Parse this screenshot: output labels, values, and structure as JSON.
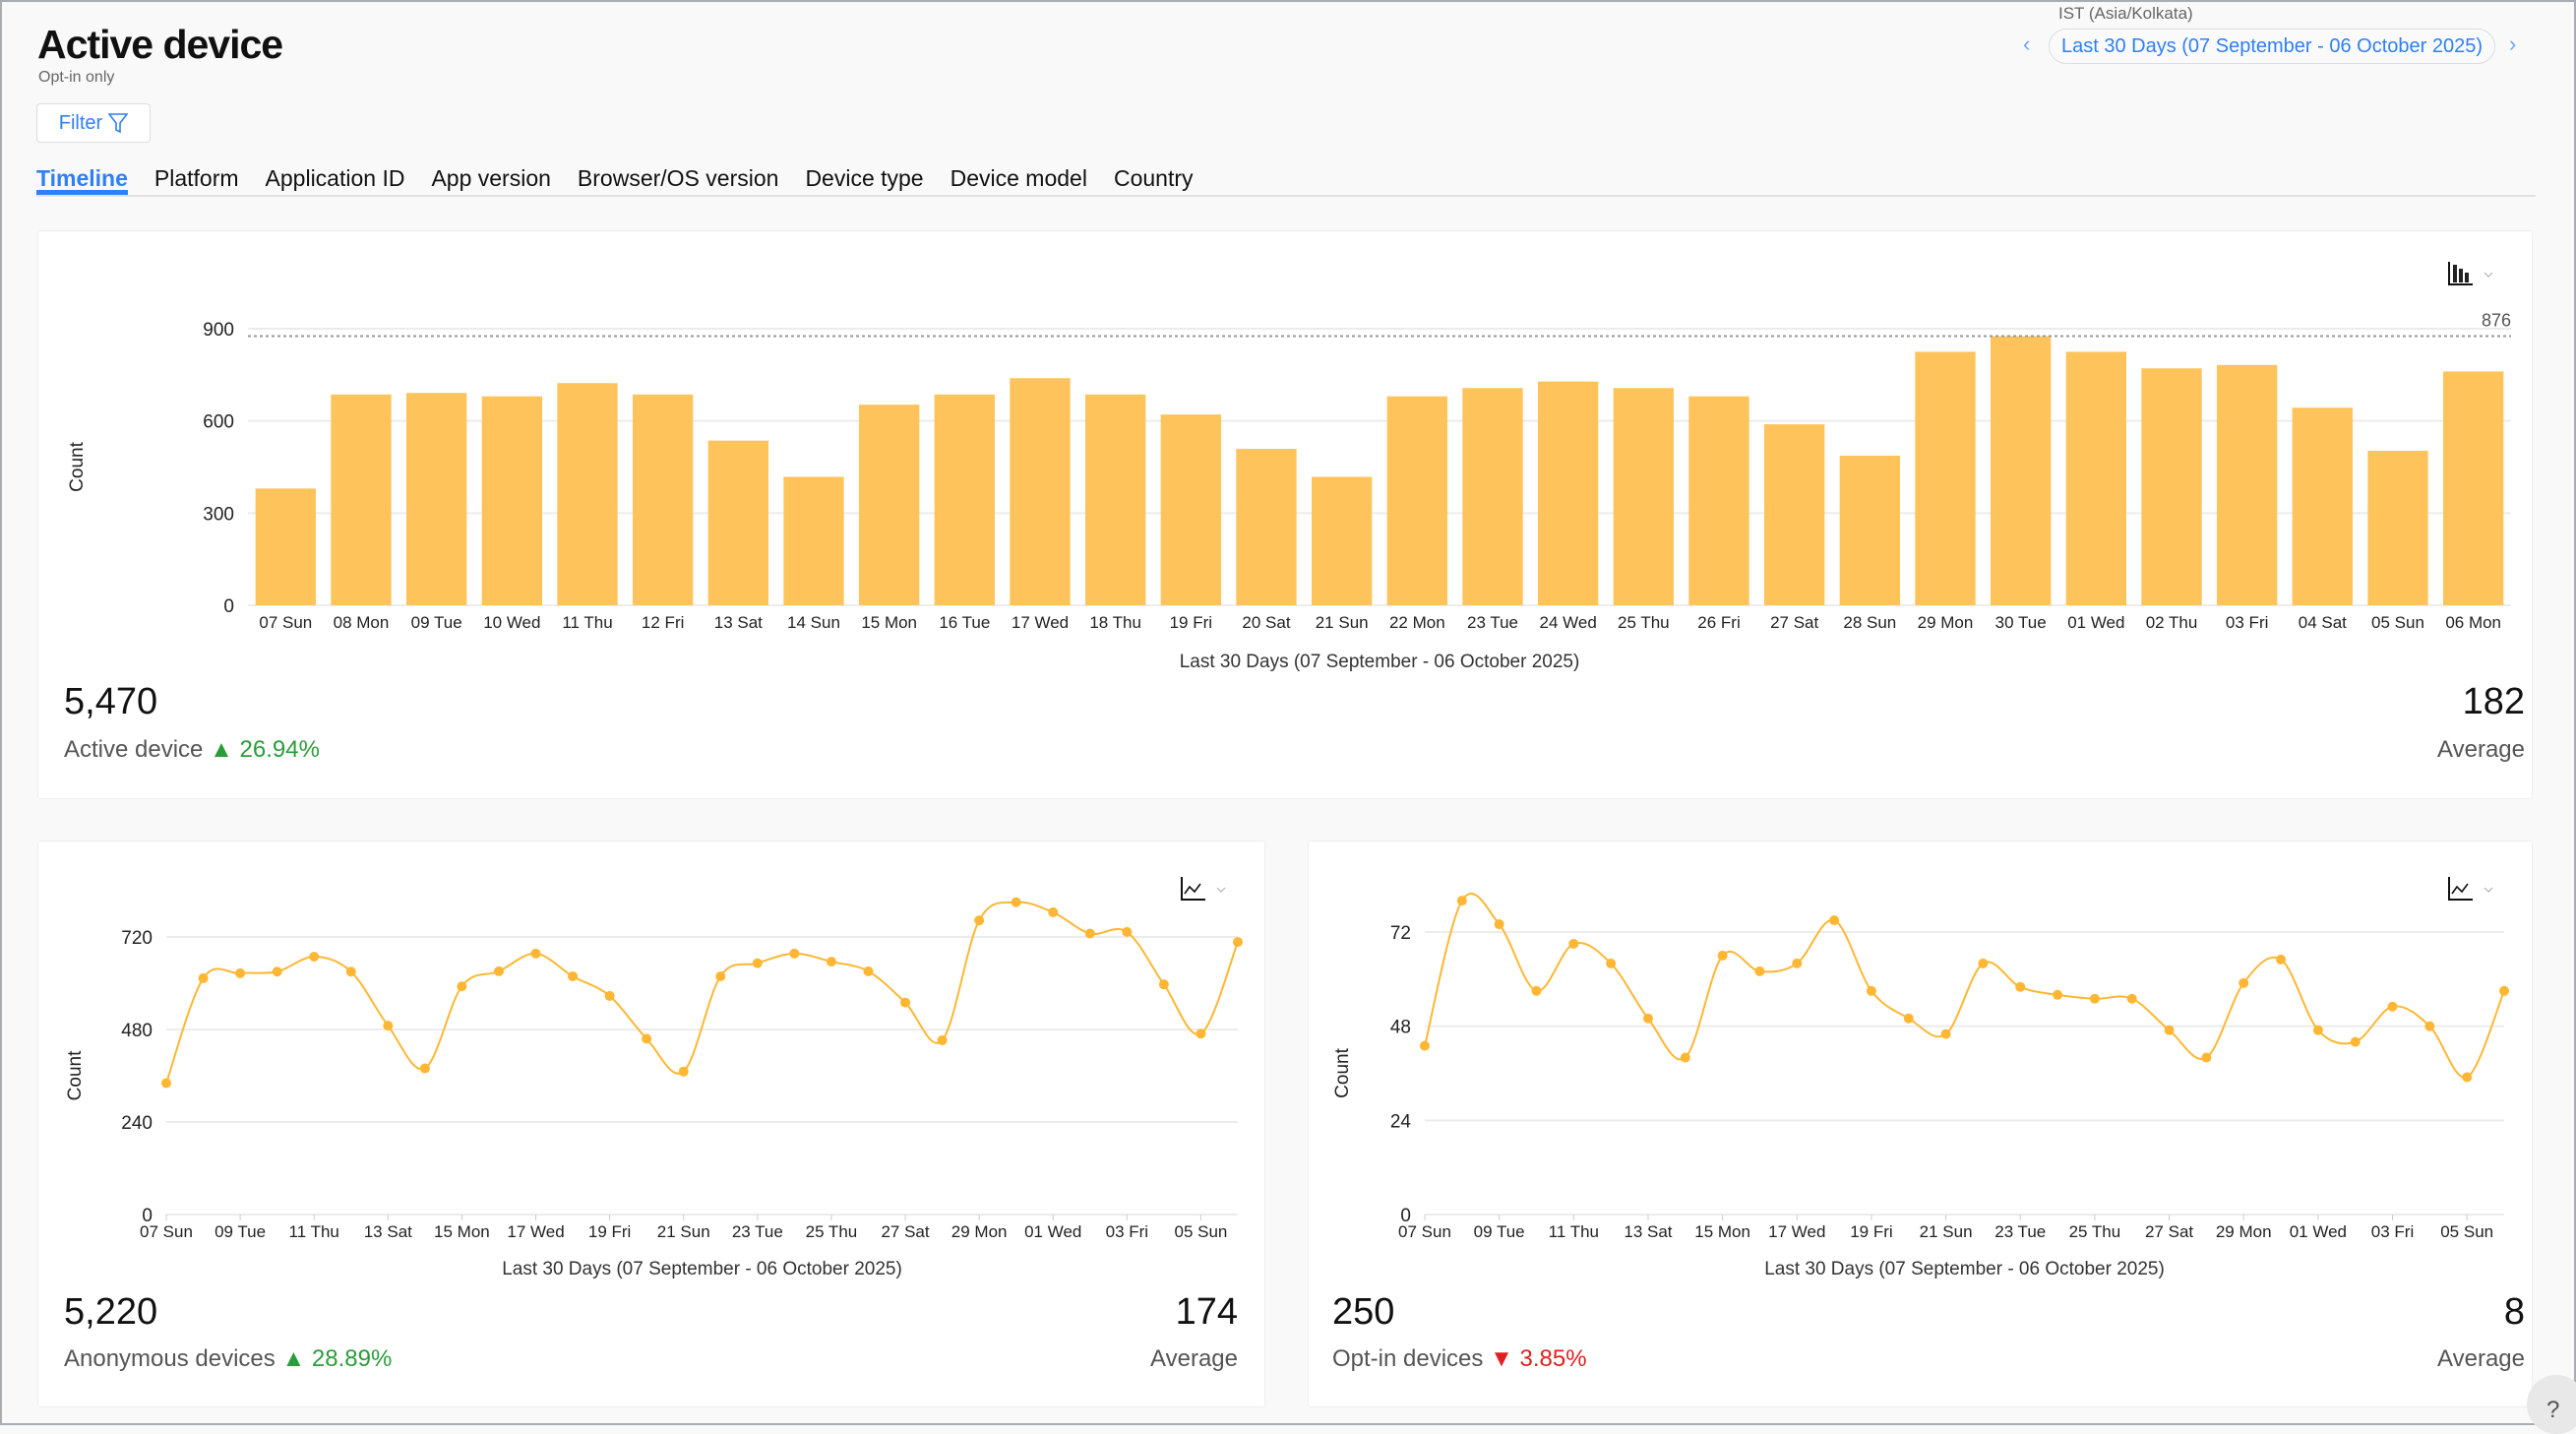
{
  "header": {
    "title": "Active device",
    "subtitle": "Opt-in only",
    "filter_label": "Filter",
    "timezone": "IST (Asia/Kolkata)",
    "date_range": "Last 30 Days (07 September - 06 October 2025)",
    "prev_icon": "chevron-left-icon",
    "next_icon": "chevron-right-icon"
  },
  "tabs": [
    {
      "label": "Timeline",
      "active": true
    },
    {
      "label": "Platform"
    },
    {
      "label": "Application ID"
    },
    {
      "label": "App version"
    },
    {
      "label": "Browser/OS version"
    },
    {
      "label": "Device type"
    },
    {
      "label": "Device model"
    },
    {
      "label": "Country"
    }
  ],
  "colors": {
    "accent": "#2f7ff5",
    "bar": "#ffc35c",
    "line": "#ffb733",
    "up": "#2a9d3a",
    "down": "#e02020"
  },
  "cards": {
    "active": {
      "total": "5,470",
      "label": "Active device",
      "change": "26.94%",
      "trend": "up",
      "average": "182",
      "average_label": "Average",
      "chart_icon": "bar-chart-icon"
    },
    "anonymous": {
      "total": "5,220",
      "label": "Anonymous devices",
      "change": "28.89%",
      "trend": "up",
      "average": "174",
      "average_label": "Average",
      "chart_icon": "line-chart-icon"
    },
    "optin": {
      "total": "250",
      "label": "Opt-in devices",
      "change": "3.85%",
      "trend": "down",
      "average": "8",
      "average_label": "Average",
      "chart_icon": "line-chart-icon"
    }
  },
  "chart_data": [
    {
      "type": "bar",
      "ylabel": "Count",
      "xlabel": "Last 30 Days (07 September - 06 October 2025)",
      "ylim": [
        0,
        900
      ],
      "yticks": [
        0,
        300,
        600,
        900
      ],
      "grid": true,
      "reference_line": {
        "value": 876,
        "label": "876"
      },
      "categories": [
        "07 Sun",
        "08 Mon",
        "09 Tue",
        "10 Wed",
        "11 Thu",
        "12 Fri",
        "13 Sat",
        "14 Sun",
        "15 Mon",
        "16 Tue",
        "17 Wed",
        "18 Thu",
        "19 Fri",
        "20 Sat",
        "21 Sun",
        "22 Mon",
        "23 Tue",
        "24 Wed",
        "25 Thu",
        "26 Fri",
        "27 Sat",
        "28 Sun",
        "29 Mon",
        "30 Tue",
        "01 Wed",
        "02 Thu",
        "03 Fri",
        "04 Sat",
        "05 Sun",
        "06 Mon"
      ],
      "values": [
        380,
        686,
        691,
        680,
        723,
        686,
        536,
        418,
        653,
        686,
        739,
        686,
        621,
        509,
        418,
        680,
        707,
        728,
        707,
        680,
        589,
        487,
        825,
        876,
        825,
        771,
        782,
        643,
        503,
        761
      ]
    },
    {
      "type": "line",
      "ylabel": "Count",
      "xlabel": "Last 30 Days (07 September - 06 October 2025)",
      "ylim": [
        0,
        864
      ],
      "yticks": [
        0,
        240,
        480,
        720
      ],
      "grid": true,
      "categories": [
        "07 Sun",
        "08 Mon",
        "09 Tue",
        "10 Wed",
        "11 Thu",
        "12 Fri",
        "13 Sat",
        "14 Sun",
        "15 Mon",
        "16 Tue",
        "17 Wed",
        "18 Thu",
        "19 Fri",
        "20 Sat",
        "21 Sun",
        "22 Mon",
        "23 Tue",
        "24 Wed",
        "25 Thu",
        "26 Fri",
        "27 Sat",
        "28 Sun",
        "29 Mon",
        "30 Tue",
        "01 Wed",
        "02 Thu",
        "03 Fri",
        "04 Sat",
        "05 Sun",
        "06 Mon"
      ],
      "xtick_labels": [
        "07 Sun",
        "09 Tue",
        "11 Thu",
        "13 Sat",
        "15 Mon",
        "17 Wed",
        "19 Fri",
        "21 Sun",
        "23 Tue",
        "25 Thu",
        "27 Sat",
        "29 Mon",
        "01 Wed",
        "03 Fri",
        "05 Sun"
      ],
      "values": [
        341,
        613,
        626,
        630,
        669,
        630,
        490,
        379,
        592,
        631,
        677,
        618,
        567,
        456,
        371,
        618,
        652,
        677,
        656,
        631,
        550,
        452,
        763,
        810,
        784,
        729,
        733,
        597,
        469,
        707
      ]
    },
    {
      "type": "line",
      "ylabel": "Count",
      "xlabel": "Last 30 Days (07 September - 06 October 2025)",
      "ylim": [
        0,
        86
      ],
      "yticks": [
        0,
        24,
        48,
        72
      ],
      "grid": true,
      "categories": [
        "07 Sun",
        "08 Mon",
        "09 Tue",
        "10 Wed",
        "11 Thu",
        "12 Fri",
        "13 Sat",
        "14 Sun",
        "15 Mon",
        "16 Tue",
        "17 Wed",
        "18 Thu",
        "19 Fri",
        "20 Sat",
        "21 Sun",
        "22 Mon",
        "23 Tue",
        "24 Wed",
        "25 Thu",
        "26 Fri",
        "27 Sat",
        "28 Sun",
        "29 Mon",
        "30 Tue",
        "01 Wed",
        "02 Thu",
        "03 Fri",
        "04 Sat",
        "05 Sun",
        "06 Mon"
      ],
      "xtick_labels": [
        "07 Sun",
        "09 Tue",
        "11 Thu",
        "13 Sat",
        "15 Mon",
        "17 Wed",
        "19 Fri",
        "21 Sun",
        "23 Tue",
        "25 Thu",
        "27 Sat",
        "29 Mon",
        "01 Wed",
        "03 Fri",
        "05 Sun"
      ],
      "values": [
        43,
        80,
        74,
        57,
        69,
        64,
        50,
        40,
        66,
        62,
        64,
        75,
        57,
        50,
        46,
        64,
        58,
        56,
        55,
        55,
        47,
        40,
        59,
        65,
        47,
        44,
        53,
        48,
        35,
        57
      ]
    }
  ]
}
